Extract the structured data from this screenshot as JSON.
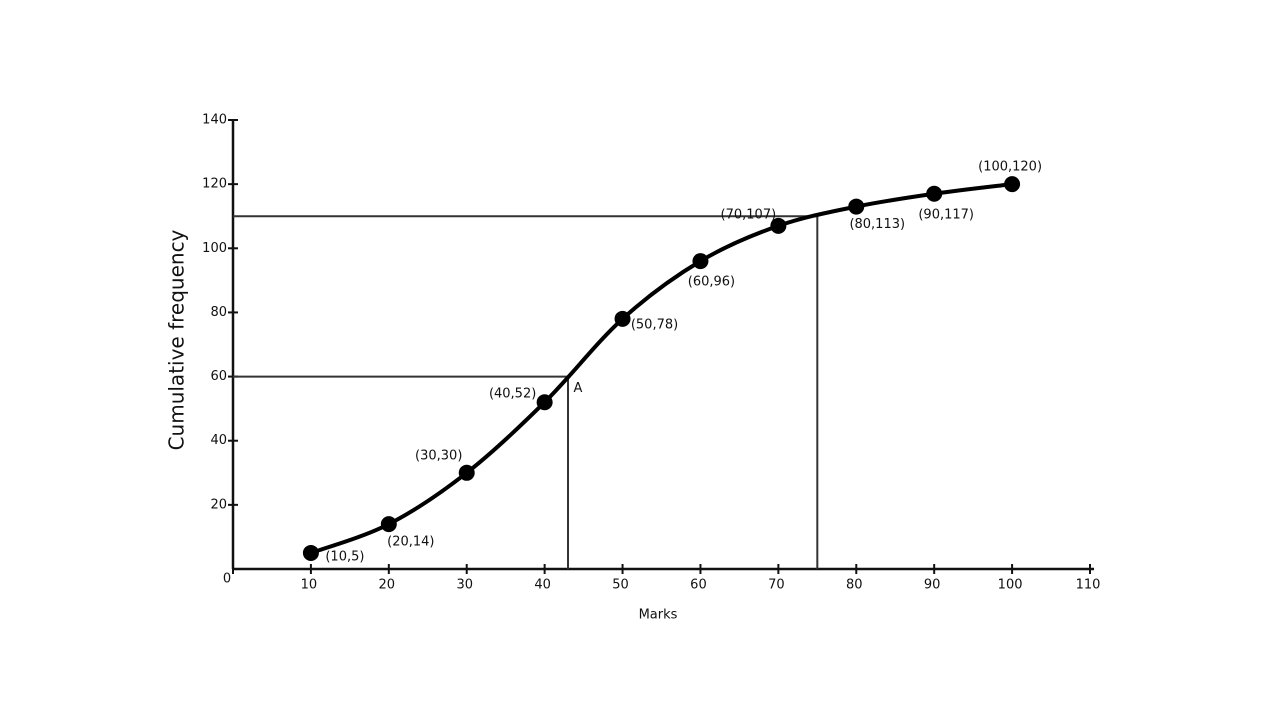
{
  "chart_data": {
    "type": "line",
    "x_label": "Marks",
    "y_label": "Cumulative frequency",
    "x": [
      10,
      20,
      30,
      40,
      50,
      60,
      70,
      80,
      90,
      100
    ],
    "series": [
      {
        "color": "#000000",
        "values": [
          5,
          14,
          30,
          52,
          78,
          96,
          107,
          113,
          117,
          120
        ],
        "value_labels": [
          "(10,5)",
          "(20,14)",
          "(30,30)",
          "(40,52)",
          "(50,78)",
          "(60,96)",
          "(70,107)",
          "(80,113)",
          "(90,117)",
          "(100,120)"
        ]
      }
    ],
    "xlim": [
      0,
      110
    ],
    "ylim": [
      0,
      140
    ],
    "xticks": [
      0,
      10,
      20,
      30,
      40,
      50,
      60,
      70,
      80,
      90,
      100,
      110
    ],
    "yticks": [
      20,
      40,
      60,
      80,
      100,
      120,
      140
    ],
    "reference_lines": [
      {
        "x": 43,
        "y": 60,
        "label": "A"
      },
      {
        "x": 75,
        "y": 110
      }
    ]
  }
}
